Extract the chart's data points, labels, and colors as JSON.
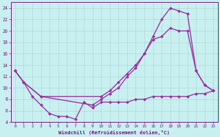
{
  "xlabel": "Windchill (Refroidissement éolien,°C)",
  "line1": {
    "x": [
      0,
      1,
      2,
      3,
      4,
      5,
      6,
      7,
      8,
      9,
      10,
      11,
      12,
      13,
      14,
      15,
      16,
      17,
      18,
      19,
      20,
      21,
      22,
      23
    ],
    "y": [
      13,
      11,
      8.5,
      7,
      5.5,
      5,
      5,
      4.5,
      7.5,
      6.5,
      7.5,
      7.5,
      7.5,
      7.5,
      8,
      8,
      8.5,
      8.5,
      8.5,
      8.5,
      8.5,
      9,
      9,
      9.5
    ],
    "color": "#9B30A0",
    "marker": "D",
    "markersize": 2,
    "linewidth": 1.0
  },
  "line2": {
    "x": [
      0,
      1,
      3,
      10,
      11,
      12,
      13,
      14,
      15,
      16,
      17,
      18,
      19,
      20,
      21,
      22,
      23
    ],
    "y": [
      13,
      11,
      8.5,
      8.5,
      9.5,
      11,
      12.5,
      14,
      16,
      19,
      22,
      24,
      23.5,
      23,
      13,
      10.5,
      9.5
    ],
    "color": "#9B30A0",
    "marker": "D",
    "markersize": 2,
    "linewidth": 1.0
  },
  "line3": {
    "x": [
      0,
      1,
      3,
      9,
      10,
      11,
      12,
      13,
      14,
      15,
      16,
      17,
      18,
      19,
      20,
      21,
      22,
      23
    ],
    "y": [
      13,
      11,
      8.5,
      7,
      8,
      9,
      10,
      12,
      13.5,
      16,
      18.5,
      19,
      20.5,
      20,
      20,
      13,
      10.5,
      9.5
    ],
    "color": "#9B30A0",
    "marker": "D",
    "markersize": 2,
    "linewidth": 1.0
  },
  "bg_color": "#c8f0f0",
  "grid_color": "#aacccc",
  "axis_color": "#7B1080",
  "tick_color": "#7B1080",
  "ylim": [
    4,
    25
  ],
  "xlim": [
    -0.5,
    23.5
  ],
  "yticks": [
    4,
    6,
    8,
    10,
    12,
    14,
    16,
    18,
    20,
    22,
    24
  ],
  "xticks": [
    0,
    1,
    2,
    3,
    4,
    5,
    6,
    7,
    8,
    9,
    10,
    11,
    12,
    13,
    14,
    15,
    16,
    17,
    18,
    19,
    20,
    21,
    22,
    23
  ]
}
